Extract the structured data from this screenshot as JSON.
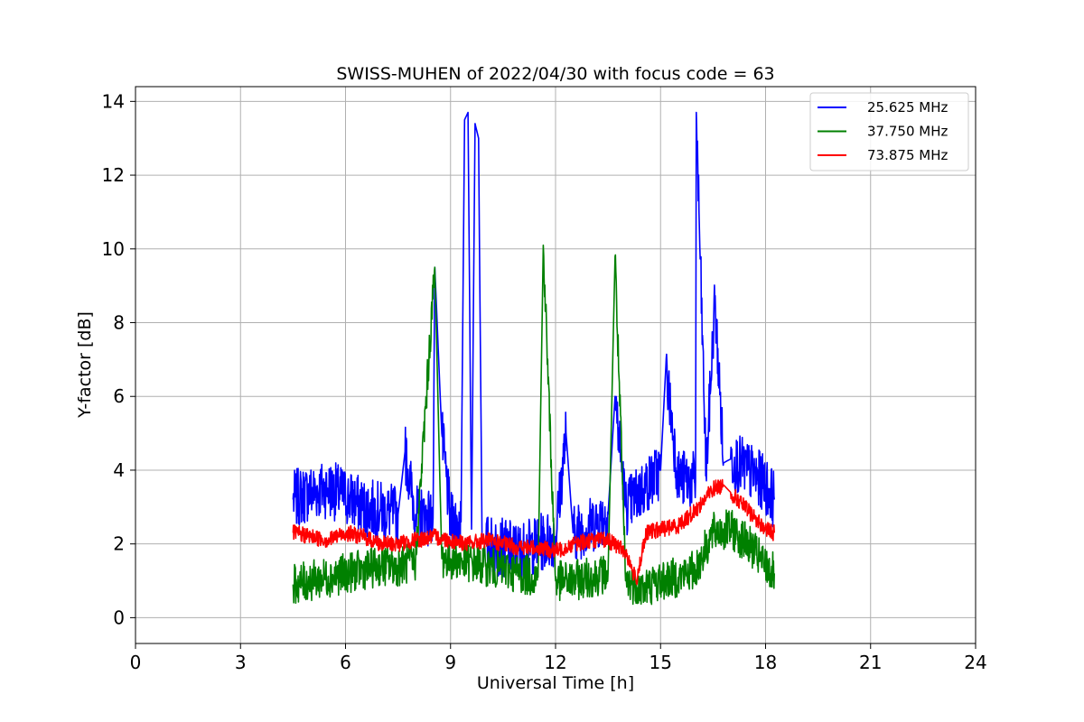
{
  "chart_data": {
    "type": "line",
    "title": "SWISS-MUHEN of 2022/04/30 with focus code = 63",
    "xlabel": "Universal Time [h]",
    "ylabel": "Y-factor [dB]",
    "xlim": [
      0,
      24
    ],
    "ylim": [
      -0.7,
      14.4
    ],
    "xticks": [
      0,
      3,
      6,
      9,
      12,
      15,
      18,
      21,
      24
    ],
    "yticks": [
      0,
      2,
      4,
      6,
      8,
      10,
      12,
      14
    ],
    "grid": true,
    "legend_position": "top-right",
    "series": [
      {
        "name": "25.625 MHz",
        "color": "#0000ff",
        "x": [
          4.5,
          5.0,
          5.5,
          6.0,
          6.5,
          7.0,
          7.5,
          7.7,
          8.0,
          8.5,
          8.55,
          8.75,
          9.0,
          9.3,
          9.4,
          9.5,
          9.6,
          9.7,
          9.8,
          9.9,
          10.0,
          10.5,
          11.0,
          11.5,
          12.0,
          12.3,
          12.5,
          13.0,
          13.5,
          13.7,
          14.0,
          14.5,
          15.0,
          15.15,
          15.5,
          16.0,
          16.02,
          16.3,
          16.55,
          16.8,
          17.0,
          17.5,
          18.0,
          18.25
        ],
        "y": [
          3.2,
          3.4,
          3.5,
          3.3,
          3.0,
          2.9,
          2.8,
          4.5,
          2.8,
          2.7,
          9.5,
          5.0,
          2.6,
          2.6,
          13.5,
          13.7,
          2.4,
          13.4,
          13.0,
          2.2,
          2.0,
          1.9,
          1.8,
          2.0,
          2.2,
          5.0,
          2.3,
          2.5,
          2.8,
          6.0,
          3.0,
          3.5,
          4.0,
          6.8,
          3.8,
          3.7,
          13.7,
          3.9,
          8.6,
          4.2,
          4.3,
          4.0,
          3.6,
          3.2
        ]
      },
      {
        "name": "37.750 MHz",
        "color": "#008000",
        "x": [
          4.5,
          5.0,
          5.5,
          6.0,
          6.5,
          7.0,
          7.5,
          8.0,
          8.55,
          8.75,
          9.0,
          9.5,
          10.0,
          10.5,
          11.0,
          11.5,
          11.65,
          12.0,
          12.5,
          13.0,
          13.5,
          13.7,
          14.0,
          14.5,
          15.0,
          15.5,
          16.0,
          16.5,
          17.0,
          17.5,
          18.0,
          18.25
        ],
        "y": [
          0.9,
          1.0,
          1.1,
          1.2,
          1.3,
          1.4,
          1.4,
          1.5,
          9.5,
          1.6,
          1.6,
          1.5,
          1.4,
          1.3,
          1.2,
          1.1,
          10.1,
          1.0,
          1.0,
          1.1,
          1.2,
          9.8,
          1.0,
          0.8,
          1.0,
          1.1,
          1.3,
          2.3,
          2.4,
          2.0,
          1.4,
          1.2
        ]
      },
      {
        "name": "73.875 MHz",
        "color": "#ff0000",
        "x": [
          4.5,
          5.0,
          5.5,
          6.0,
          6.5,
          7.0,
          7.5,
          8.0,
          8.5,
          9.0,
          9.5,
          10.0,
          10.5,
          11.0,
          11.5,
          12.0,
          12.5,
          13.0,
          13.5,
          14.0,
          14.3,
          14.6,
          15.0,
          15.5,
          16.0,
          16.5,
          16.8,
          17.0,
          17.5,
          18.0,
          18.25
        ],
        "y": [
          2.3,
          2.2,
          2.1,
          2.3,
          2.2,
          2.0,
          2.0,
          2.1,
          2.2,
          2.1,
          2.0,
          2.1,
          2.0,
          1.9,
          1.9,
          1.8,
          2.0,
          2.1,
          2.1,
          1.8,
          1.0,
          2.3,
          2.4,
          2.5,
          2.9,
          3.5,
          3.6,
          3.4,
          2.9,
          2.4,
          2.3
        ]
      }
    ]
  }
}
